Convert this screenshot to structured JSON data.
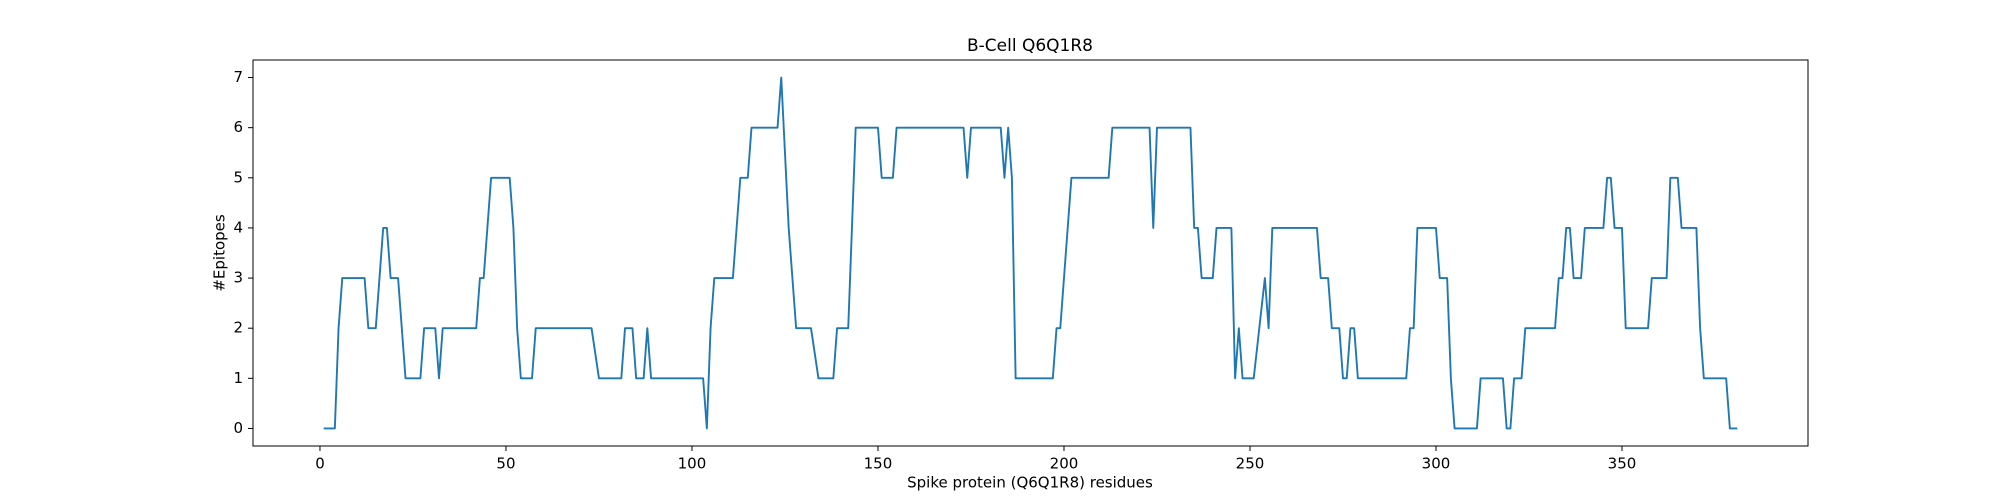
{
  "chart_data": {
    "type": "line",
    "title": "B-Cell Q6Q1R8",
    "x_label": "Spike protein (Q6Q1R8) residues",
    "y_label": "#Epitopes",
    "x": [
      1,
      4,
      5,
      6,
      12,
      13,
      15,
      17,
      18,
      19,
      21,
      23,
      27,
      28,
      31,
      32,
      33,
      42,
      43,
      44,
      46,
      51,
      52,
      53,
      54,
      57,
      58,
      73,
      75,
      81,
      82,
      84,
      85,
      87,
      88,
      89,
      103,
      104,
      105,
      106,
      111,
      113,
      115,
      116,
      123,
      124,
      126,
      128,
      132,
      134,
      138,
      139,
      142,
      144,
      150,
      151,
      154,
      155,
      173,
      174,
      175,
      183,
      184,
      185,
      186,
      187,
      197,
      198,
      199,
      202,
      212,
      213,
      223,
      224,
      225,
      234,
      235,
      236,
      237,
      240,
      241,
      245,
      246,
      247,
      248,
      251,
      254,
      255,
      256,
      268,
      269,
      271,
      272,
      274,
      275,
      276,
      277,
      278,
      279,
      292,
      293,
      294,
      295,
      300,
      301,
      303,
      304,
      305,
      311,
      312,
      318,
      319,
      320,
      321,
      323,
      324,
      332,
      333,
      334,
      335,
      336,
      337,
      339,
      340,
      345,
      346,
      347,
      348,
      350,
      351,
      357,
      358,
      362,
      363,
      365,
      366,
      370,
      371,
      372,
      378,
      379,
      381
    ],
    "series": [
      {
        "name": "B-Cell",
        "color": "#1f77b4",
        "values": [
          0,
          0,
          2,
          3,
          3,
          2,
          2,
          4,
          4,
          3,
          3,
          1,
          1,
          2,
          2,
          1,
          2,
          2,
          3,
          3,
          5,
          5,
          4,
          2,
          1,
          1,
          2,
          2,
          1,
          1,
          2,
          2,
          1,
          1,
          2,
          1,
          1,
          0,
          2,
          3,
          3,
          5,
          5,
          6,
          6,
          7,
          4,
          2,
          2,
          1,
          1,
          2,
          2,
          6,
          6,
          5,
          5,
          6,
          6,
          5,
          6,
          6,
          5,
          6,
          5,
          1,
          1,
          2,
          2,
          5,
          5,
          6,
          6,
          4,
          6,
          6,
          4,
          4,
          3,
          3,
          4,
          4,
          1,
          2,
          1,
          1,
          3,
          2,
          4,
          4,
          3,
          3,
          2,
          2,
          1,
          1,
          2,
          2,
          1,
          1,
          2,
          2,
          4,
          4,
          3,
          3,
          1,
          0,
          0,
          1,
          1,
          0,
          0,
          1,
          1,
          2,
          2,
          3,
          3,
          4,
          4,
          3,
          3,
          4,
          4,
          5,
          5,
          4,
          4,
          2,
          2,
          3,
          3,
          5,
          5,
          4,
          4,
          2,
          1,
          1,
          0,
          0
        ]
      }
    ],
    "xlim": [
      -18,
      400
    ],
    "ylim": [
      -0.35,
      7.35
    ],
    "xticks": [
      0,
      50,
      100,
      150,
      200,
      250,
      300,
      350
    ],
    "yticks": [
      0,
      1,
      2,
      3,
      4,
      5,
      6,
      7
    ]
  }
}
